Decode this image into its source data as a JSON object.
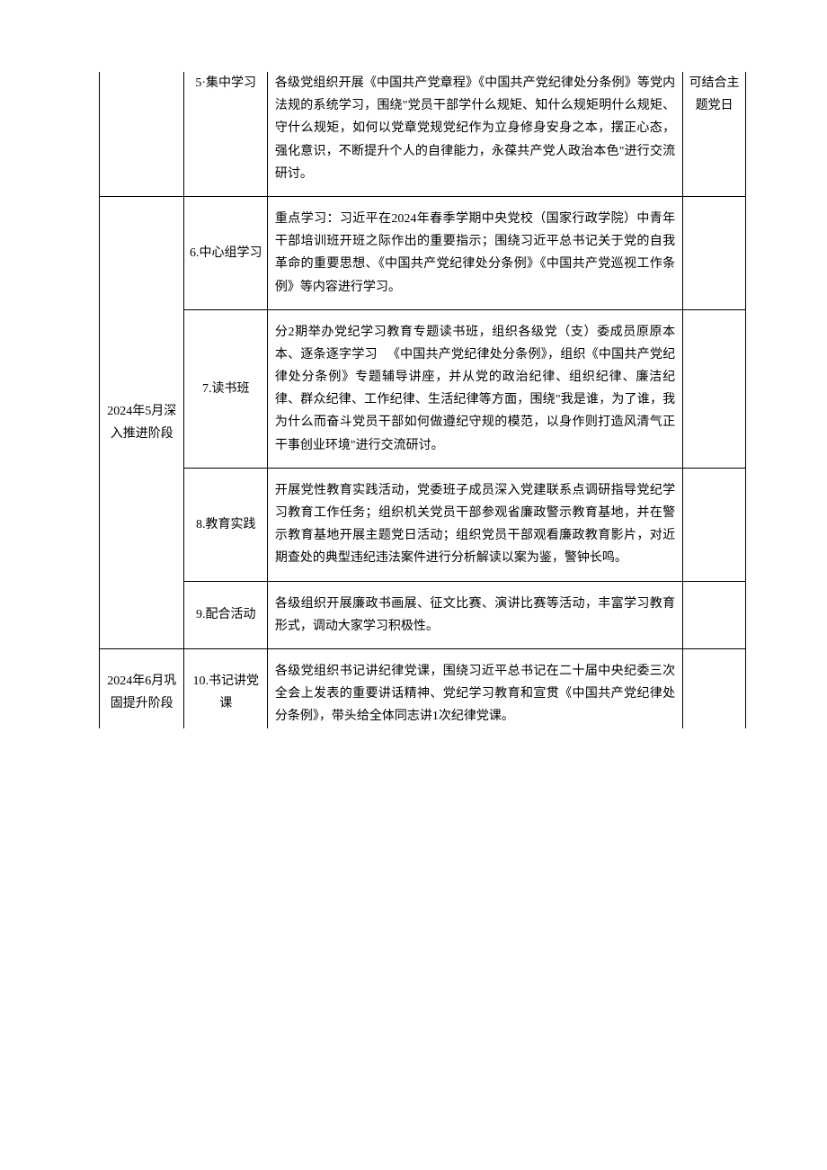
{
  "table": {
    "columns": {
      "phase_width": 92,
      "activity_width": 90,
      "content_width": 450,
      "note_width": 68
    },
    "border_color": "#000000",
    "background_color": "#ffffff",
    "text_color": "#000000",
    "font_size": 14,
    "line_height": 1.8,
    "rows": [
      {
        "phase": "",
        "activity": "5·集中学习",
        "content": "各级党组织开展《中国共产党章程》《中国共产党纪律处分条例》等党内法规的系统学习，围绕\"党员干部学什么规矩、知什么规矩明什么规矩、守什么规矩，如何以党章党规党纪作为立身修身安身之本，摆正心态，强化意识，不断提升个人的自律能力，永葆共产党人政治本色\"进行交流研讨。",
        "note": "可结合主题党日",
        "phase_rowspan": 1,
        "cut_top": true
      },
      {
        "phase": "2024年5月深入推进阶段",
        "activity": "6.中心组学习",
        "content": "重点学习：习近平在2024年春季学期中央党校（国家行政学院）中青年干部培训班开班之际作出的重要指示；围绕习近平总书记关于党的自我革命的重要思想、《中国共产党纪律处分条例》《中国共产党巡视工作条例》等内容进行学习。",
        "note": "",
        "phase_rowspan": 4
      },
      {
        "activity": "7.读书班",
        "content": "分2期举办党纪学习教育专题读书班，组织各级党（支）委成员原原本本、逐条逐字学习\n　《中国共产党纪律处分条例》，组织《中国共产党纪律处分条例》专题辅导讲座，并从党的政治纪律、组织纪律、廉洁纪律、群众纪律、工作纪律、生活纪律等方面，围绕\"我是谁，为了谁，我为什么而奋斗党员干部如何做遵纪守规的模范，以身作则打造风清气正干事创业环境\"进行交流研讨。",
        "note": ""
      },
      {
        "activity": "8.教育实践",
        "content": "开展党性教育实践活动，党委班子成员深入党建联系点调研指导党纪学习教育工作任务；组织机关党员干部参观省廉政警示教育基地，并在警示教育基地开展主题党日活动；组织党员干部观看廉政教育影片，对近期查处的典型违纪违法案件进行分析解读以案为鉴，警钟长鸣。",
        "note": ""
      },
      {
        "activity": "9.配合活动",
        "content": "各级组织开展廉政书画展、征文比赛、演讲比赛等活动，丰富学习教育形式，调动大家学习积极性。",
        "note": ""
      },
      {
        "phase": "2024年6月巩固提升阶段",
        "activity": "10.书记讲党课",
        "content": "各级党组织书记讲纪律党课，围绕习近平总书记在二十届中央纪委三次全会上发表的重要讲话精神、党纪学习教育和宣贯《中国共产党纪律处分条例》，带头给全体同志讲1次纪律党课。",
        "note": "",
        "phase_rowspan": 1,
        "cut_bottom": true
      }
    ]
  }
}
